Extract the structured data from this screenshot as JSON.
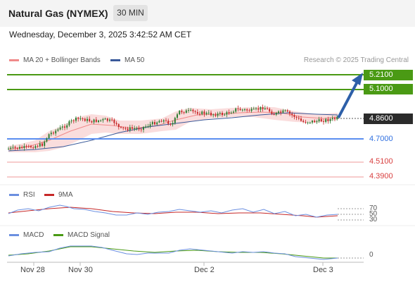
{
  "header": {
    "instrument": "Natural Gas (NYMEX)",
    "timeframe": "30 MIN"
  },
  "datetime": "Wednesday, December 3, 2025 3:42:52 AM CET",
  "legend": {
    "bollinger": "MA 20 + Bollinger Bands",
    "ma50": "MA 50",
    "credit": "Research © 2025 Trading Central"
  },
  "colors": {
    "green": "#4a9a14",
    "blue": "#2f6fe0",
    "red": "#d94040",
    "candle_up": "#2e7d32",
    "candle_down": "#c62828",
    "band": "#f7c8c8"
  },
  "levels": [
    {
      "label": "5.2100",
      "style": "green"
    },
    {
      "label": "5.1000",
      "style": "green"
    },
    {
      "label": "4.8600",
      "style": "dark"
    },
    {
      "label": "4.7000",
      "style": "blue"
    },
    {
      "label": "4.5100",
      "style": "red"
    },
    {
      "label": "4.3900",
      "style": "red"
    }
  ],
  "rsi": {
    "label": "RSI",
    "ma_label": "9MA",
    "ticks": [
      "70",
      "50",
      "30"
    ]
  },
  "macd": {
    "label": "MACD",
    "signal_label": "MACD Signal",
    "tick": "0"
  },
  "xaxis": {
    "labels": [
      "Nov 28",
      "Nov 30",
      "Dec 2",
      "Dec 3"
    ]
  }
}
